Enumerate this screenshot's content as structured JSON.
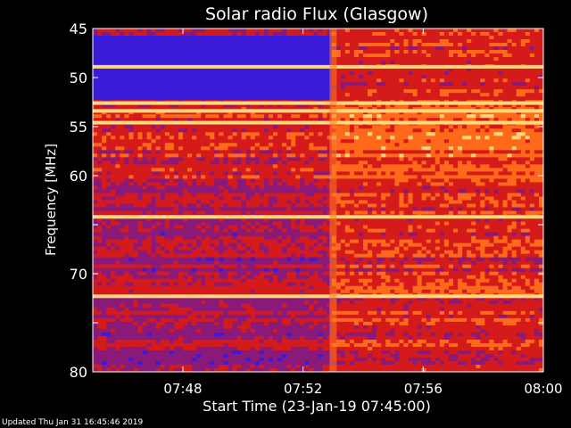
{
  "chart_data": {
    "type": "heatmap",
    "title": "Solar radio Flux (Glasgow)",
    "xlabel": "Start Time (23-Jan-19 07:45:00)",
    "ylabel": "Frequency [MHz]",
    "x_range": [
      "07:45",
      "08:00"
    ],
    "x_ticks": [
      "07:48",
      "07:52",
      "07:56",
      "08:00"
    ],
    "y_range": [
      45,
      80
    ],
    "y_ticks": [
      45,
      50,
      55,
      60,
      65,
      70,
      75,
      80
    ],
    "y_tick_labels": [
      "45",
      "50",
      "55",
      "60",
      "",
      "70",
      "",
      "80"
    ],
    "y_axis_inverted": true,
    "grid": false,
    "colormap": [
      "#1a0a8c",
      "#3b1ad8",
      "#8a1a7a",
      "#d41a1a",
      "#ff6a1a",
      "#ffd87a"
    ],
    "features": {
      "event_start": "07:53",
      "horizontal_interference_lines_mhz": [
        48.9,
        52.6,
        53.4,
        54.6,
        64.2,
        72.3
      ],
      "low_intensity_band_mhz_before_event": [
        45.6,
        52.2
      ]
    }
  },
  "footer": {
    "updated": "Updated Thu Jan 31 16:45:46 2019"
  }
}
